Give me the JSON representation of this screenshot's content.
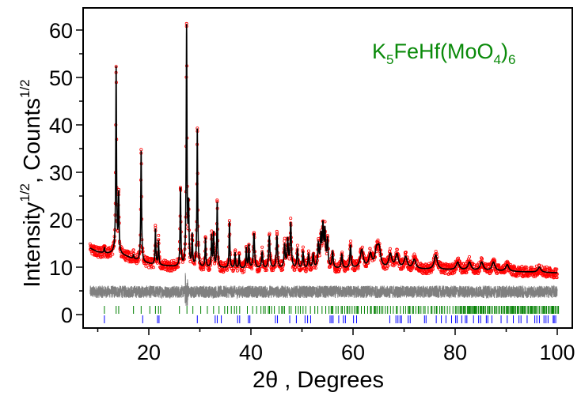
{
  "chart_data": {
    "type": "line",
    "title": "",
    "annotation": {
      "text_parts": [
        {
          "t": "K",
          "kind": "normal"
        },
        {
          "t": "5",
          "kind": "sub"
        },
        {
          "t": "FeHf(MoO",
          "kind": "normal"
        },
        {
          "t": "4",
          "kind": "sub"
        },
        {
          "t": ")",
          "kind": "normal"
        },
        {
          "t": "6",
          "kind": "sub"
        }
      ],
      "plain": "K5FeHf(MoO4)6",
      "color": "#0a8a0a"
    },
    "xlabel": "2θ , Degrees",
    "xlabel_parts": {
      "main": "2θ , Degrees"
    },
    "ylabel_parts": [
      {
        "t": "Intensity",
        "kind": "normal"
      },
      {
        "t": "1/2",
        "kind": "sup"
      },
      {
        "t": ", Counts",
        "kind": "normal"
      },
      {
        "t": "1/2",
        "kind": "sup"
      }
    ],
    "ylabel": "Intensity^1/2, Counts^1/2",
    "xlim": [
      7.5,
      101.5
    ],
    "ylim": [
      -3,
      65
    ],
    "x_ticks_major": [
      20,
      40,
      60,
      80,
      100
    ],
    "x_ticks_minor": [
      10,
      30,
      50,
      70,
      90
    ],
    "y_ticks_major": [
      0,
      10,
      20,
      30,
      40,
      50,
      60
    ],
    "y_ticks_minor": [
      5,
      15,
      25,
      35,
      45,
      55
    ],
    "grid": false,
    "legend": "none",
    "colors": {
      "observed": "#ff0000",
      "calculated": "#000000",
      "difference": "#808080",
      "phase1_ticks": "#008000",
      "phase2_ticks": "#0000ff",
      "frame": "#000000"
    },
    "series": [
      {
        "name": "Observed (circles)",
        "style": "red-open-circles",
        "background": [
          [
            8.5,
            14.0
          ],
          [
            10,
            13.2
          ],
          [
            12,
            12.9
          ],
          [
            13.2,
            13.0
          ],
          [
            15,
            12.5
          ],
          [
            17,
            11.7
          ],
          [
            19,
            11.0
          ],
          [
            21,
            10.5
          ],
          [
            23,
            10.3
          ],
          [
            25,
            10.1
          ],
          [
            30,
            9.9
          ],
          [
            40,
            9.7
          ],
          [
            50,
            9.6
          ],
          [
            60,
            9.7
          ],
          [
            70,
            9.6
          ],
          [
            80,
            9.4
          ],
          [
            90,
            9.1
          ],
          [
            100,
            8.8
          ]
        ],
        "peaks": [
          {
            "x": 11.3,
            "y": 14.0
          },
          {
            "x": 13.6,
            "y": 52.0
          },
          {
            "x": 14.1,
            "y": 25.0
          },
          {
            "x": 17.0,
            "y": 12.5
          },
          {
            "x": 18.5,
            "y": 34.5
          },
          {
            "x": 21.3,
            "y": 18.0
          },
          {
            "x": 21.9,
            "y": 15.5
          },
          {
            "x": 26.2,
            "y": 26.5
          },
          {
            "x": 27.4,
            "y": 60.5
          },
          {
            "x": 27.8,
            "y": 22.0
          },
          {
            "x": 28.5,
            "y": 16.5
          },
          {
            "x": 29.5,
            "y": 39.0
          },
          {
            "x": 31.1,
            "y": 16.0
          },
          {
            "x": 32.3,
            "y": 16.5
          },
          {
            "x": 32.7,
            "y": 17.0
          },
          {
            "x": 33.4,
            "y": 23.5
          },
          {
            "x": 35.8,
            "y": 19.5
          },
          {
            "x": 36.9,
            "y": 13.0
          },
          {
            "x": 37.7,
            "y": 12.5
          },
          {
            "x": 39.1,
            "y": 14.0
          },
          {
            "x": 39.6,
            "y": 14.5
          },
          {
            "x": 40.6,
            "y": 17.0
          },
          {
            "x": 42.2,
            "y": 13.0
          },
          {
            "x": 43.6,
            "y": 16.5
          },
          {
            "x": 45.1,
            "y": 16.5
          },
          {
            "x": 46.6,
            "y": 14.5
          },
          {
            "x": 47.2,
            "y": 15.5
          },
          {
            "x": 47.8,
            "y": 19.0
          },
          {
            "x": 49.1,
            "y": 13.5
          },
          {
            "x": 50.2,
            "y": 13.0
          },
          {
            "x": 51.3,
            "y": 12.5
          },
          {
            "x": 52.2,
            "y": 12.5
          },
          {
            "x": 53.2,
            "y": 14.5
          },
          {
            "x": 53.7,
            "y": 16.0
          },
          {
            "x": 54.1,
            "y": 18.0
          },
          {
            "x": 54.5,
            "y": 17.0
          },
          {
            "x": 55.0,
            "y": 15.5
          },
          {
            "x": 56.0,
            "y": 13.0
          },
          {
            "x": 57.8,
            "y": 12.5
          },
          {
            "x": 59.5,
            "y": 14.5
          },
          {
            "x": 61.7,
            "y": 13.5
          },
          {
            "x": 63.4,
            "y": 12.5
          },
          {
            "x": 64.6,
            "y": 13.0
          },
          {
            "x": 65.1,
            "y": 13.5
          },
          {
            "x": 67.3,
            "y": 12.5
          },
          {
            "x": 68.6,
            "y": 12.5
          },
          {
            "x": 70.3,
            "y": 12.0
          },
          {
            "x": 72.0,
            "y": 11.5
          },
          {
            "x": 76.2,
            "y": 12.5
          },
          {
            "x": 80.5,
            "y": 11.0
          },
          {
            "x": 82.8,
            "y": 11.0
          },
          {
            "x": 85.2,
            "y": 11.0
          },
          {
            "x": 87.5,
            "y": 11.0
          },
          {
            "x": 90.2,
            "y": 10.5
          },
          {
            "x": 96.5,
            "y": 10.0
          }
        ]
      },
      {
        "name": "Calculated",
        "style": "black-line",
        "note": "follows observed profile"
      },
      {
        "name": "Difference",
        "style": "gray-line",
        "baseline": 4.8,
        "noise_amplitude": 1.3
      },
      {
        "name": "Bragg positions phase 1",
        "style": "green-ticks",
        "y_center": 1.0,
        "x_range": [
          11,
          100
        ]
      },
      {
        "name": "Bragg positions phase 2",
        "style": "blue-ticks",
        "y_center": -1.0,
        "positions": [
          11.3,
          18.8,
          21.7,
          22.0,
          29.5,
          33.0,
          33.4,
          34.2,
          37.4,
          37.8,
          39.5,
          39.8,
          44.8,
          45.2,
          47.6,
          48.9,
          50.6,
          51.1,
          51.7,
          55.5,
          55.8,
          56.1,
          57.2,
          58.1,
          58.5,
          60.1,
          60.7,
          67.2,
          68.4,
          68.8,
          69.2,
          69.5,
          70.8,
          71.2,
          74.0,
          74.3,
          76.3,
          77.3,
          78.2,
          79.3,
          80.1,
          80.4,
          81.3,
          82.0,
          82.3,
          83.6,
          84.6,
          85.0,
          86.1,
          86.4,
          87.2,
          89.0,
          90.2,
          91.4,
          92.5,
          92.9,
          94.1,
          95.6,
          96.0,
          96.5,
          97.4,
          97.8,
          98.2,
          99.2,
          99.4,
          99.7
        ]
      }
    ]
  }
}
